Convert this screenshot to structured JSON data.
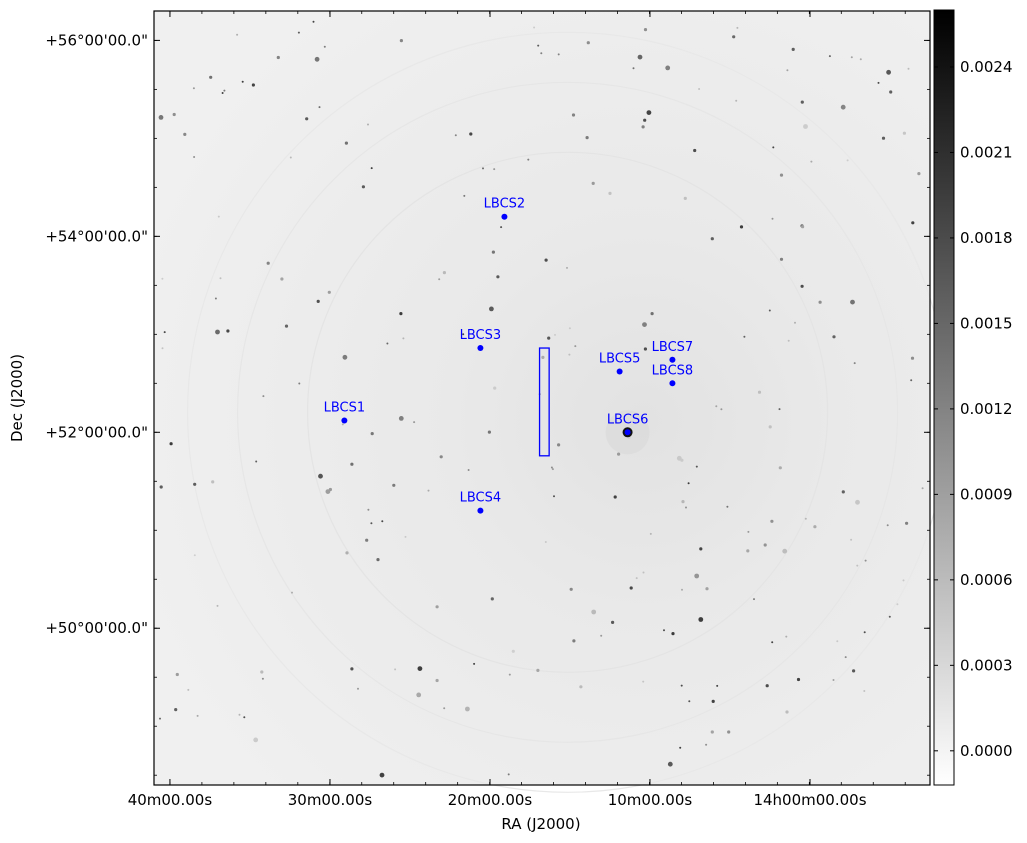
{
  "chart_data": {
    "type": "scatter",
    "title": "",
    "xlabel": "RA (J2000)",
    "ylabel": "Dec (J2000)",
    "x_unit": "hours_RA",
    "y_unit": "degrees_Dec",
    "xlim": [
      14.6833,
      13.875
    ],
    "ylim": [
      48.4,
      56.3
    ],
    "x_ticks": [
      {
        "value": 14.6667,
        "label": "40m00.00s"
      },
      {
        "value": 14.5,
        "label": "30m00.00s"
      },
      {
        "value": 14.3333,
        "label": "20m00.00s"
      },
      {
        "value": 14.1667,
        "label": "10m00.00s"
      },
      {
        "value": 14.0,
        "label": "14h00m00.00s"
      }
    ],
    "y_ticks": [
      {
        "value": 56.0,
        "label": "+56°00'00.0\""
      },
      {
        "value": 54.0,
        "label": "+54°00'00.0\""
      },
      {
        "value": 52.0,
        "label": "+52°00'00.0\""
      },
      {
        "value": 50.0,
        "label": "+50°00'00.0\""
      }
    ],
    "grid": false,
    "series": [
      {
        "color": "#0000ff",
        "points": [
          {
            "label": "LBCS1",
            "ra": 14.485,
            "dec": 52.12
          },
          {
            "label": "LBCS2",
            "ra": 14.3183,
            "dec": 54.2
          },
          {
            "label": "LBCS3",
            "ra": 14.3433,
            "dec": 52.86
          },
          {
            "label": "LBCS4",
            "ra": 14.3433,
            "dec": 51.2
          },
          {
            "label": "LBCS5",
            "ra": 14.1983,
            "dec": 52.62
          },
          {
            "label": "LBCS6",
            "ra": 14.19,
            "dec": 52.0
          },
          {
            "label": "LBCS7",
            "ra": 14.1433,
            "dec": 52.74
          },
          {
            "label": "LBCS8",
            "ra": 14.1433,
            "dec": 52.5
          }
        ]
      }
    ],
    "annotation_box": {
      "ra_min": 14.2717,
      "ra_max": 14.2817,
      "dec_min": 51.76,
      "dec_max": 52.86,
      "color": "#0000ff"
    },
    "colorbar": {
      "cmap": "gray_r",
      "vmin": -0.00012,
      "vmax": 0.0026,
      "ticks": [
        {
          "value": 0.0024,
          "label": "0.0024"
        },
        {
          "value": 0.0021,
          "label": "0.0021"
        },
        {
          "value": 0.0018,
          "label": "0.0018"
        },
        {
          "value": 0.0015,
          "label": "0.0015"
        },
        {
          "value": 0.0012,
          "label": "0.0012"
        },
        {
          "value": 0.0009,
          "label": "0.0009"
        },
        {
          "value": 0.0006,
          "label": "0.0006"
        },
        {
          "value": 0.0003,
          "label": "0.0003"
        },
        {
          "value": 0.0,
          "label": "0.0000"
        }
      ]
    }
  }
}
